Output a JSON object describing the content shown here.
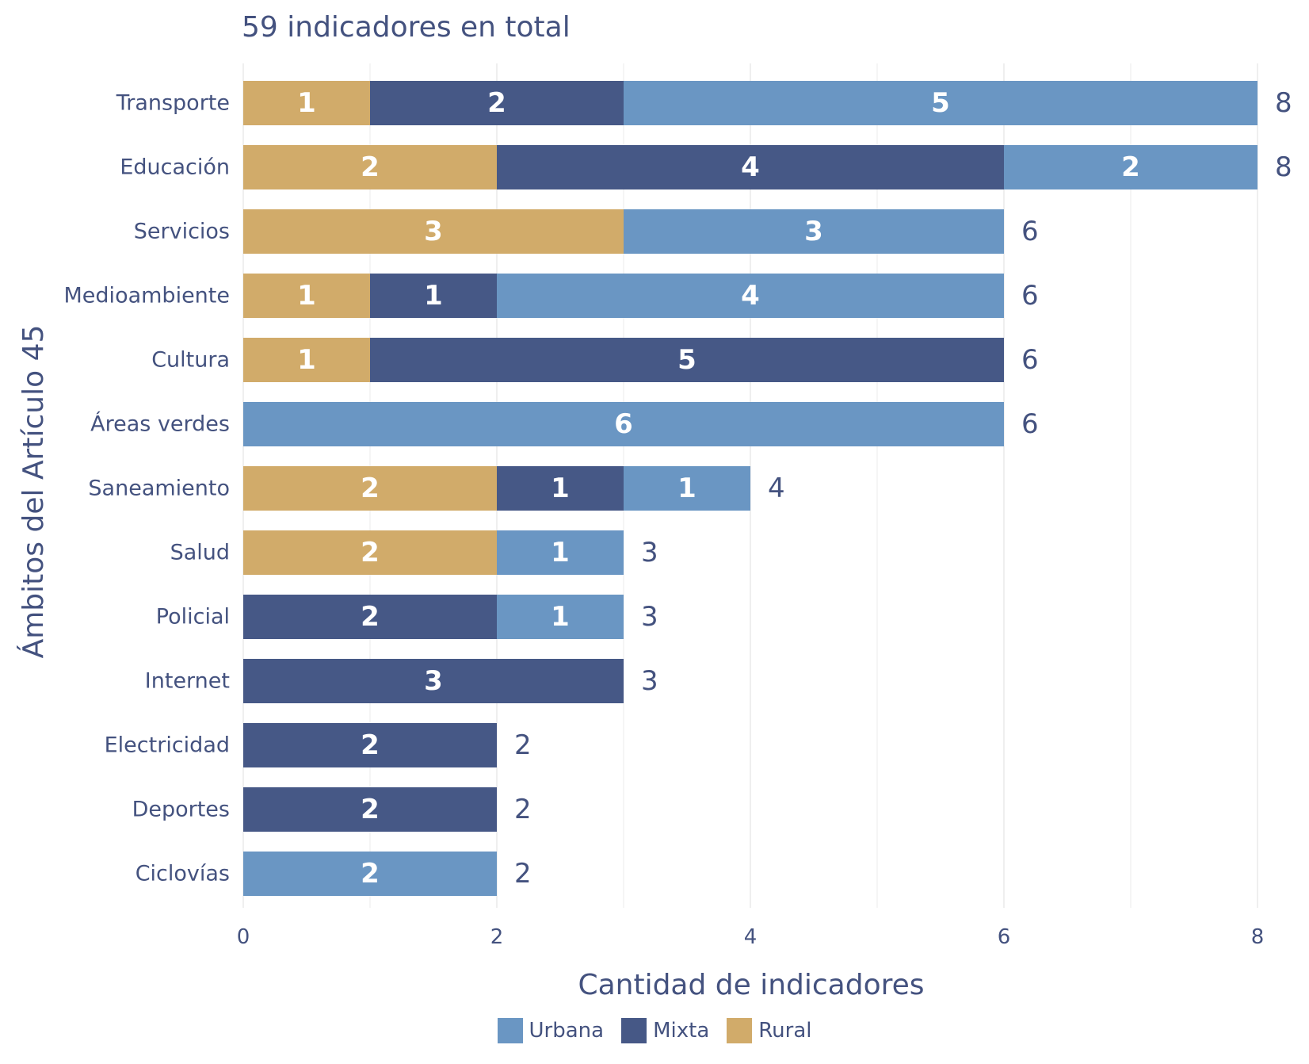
{
  "chart_data": {
    "type": "bar",
    "orientation": "horizontal",
    "stacked": true,
    "title": "59 indicadores en total",
    "xlabel": "Cantidad de indicadores",
    "ylabel": "Ámbitos del Artículo 45",
    "xlim": [
      0,
      8.3
    ],
    "xticks": [
      0,
      2,
      4,
      6,
      8
    ],
    "grid": true,
    "legend_position": "bottom",
    "categories": [
      "Transporte",
      "Educación",
      "Servicios",
      "Medioambiente",
      "Cultura",
      "Áreas verdes",
      "Saneamiento",
      "Salud",
      "Policial",
      "Internet",
      "Electricidad",
      "Deportes",
      "Ciclovías"
    ],
    "stack_order": [
      "Rural",
      "Mixta",
      "Urbana"
    ],
    "series": [
      {
        "name": "Rural",
        "color": "#d1ab6a",
        "values": [
          1,
          2,
          3,
          1,
          1,
          0,
          2,
          2,
          0,
          0,
          0,
          0,
          0
        ]
      },
      {
        "name": "Mixta",
        "color": "#465886",
        "values": [
          2,
          4,
          0,
          1,
          5,
          0,
          1,
          0,
          2,
          3,
          2,
          2,
          0
        ]
      },
      {
        "name": "Urbana",
        "color": "#6a96c3",
        "values": [
          5,
          2,
          3,
          4,
          0,
          6,
          1,
          1,
          1,
          0,
          0,
          0,
          2
        ]
      }
    ],
    "totals": [
      8,
      8,
      6,
      6,
      6,
      6,
      4,
      3,
      3,
      3,
      2,
      2,
      2
    ],
    "legend": [
      "Urbana",
      "Mixta",
      "Rural"
    ],
    "colors": {
      "text": "#44527f",
      "grid": "#ebebeb",
      "bar_label": "#ffffff"
    }
  }
}
